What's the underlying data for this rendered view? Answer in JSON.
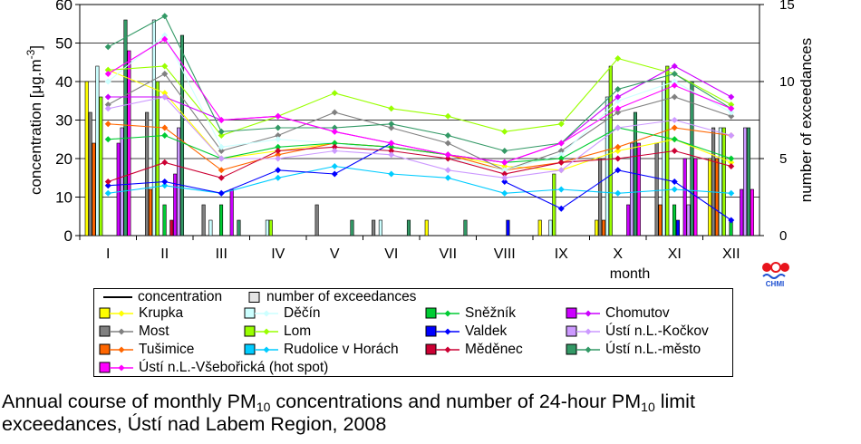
{
  "chart_data": {
    "type": "bar+line",
    "categories": [
      "I",
      "II",
      "III",
      "IV",
      "V",
      "VI",
      "VII",
      "VIII",
      "IX",
      "X",
      "XI",
      "XII"
    ],
    "xlabel": "month",
    "ylabel_left": "concentration [μg.m-3]",
    "ylabel_right": "number of exceedances",
    "ylim_left": [
      0,
      60
    ],
    "yticks_left": [
      0,
      10,
      20,
      30,
      40,
      50,
      60
    ],
    "ylim_right": [
      0,
      15
    ],
    "yticks_right": [
      0,
      5,
      10,
      15
    ],
    "grid": true,
    "series": [
      {
        "name": "Krupka",
        "color": "#ffff00",
        "exceedances": [
          10,
          0,
          0,
          0,
          0,
          0,
          1,
          0,
          1,
          1,
          0,
          5
        ],
        "concentration": [
          43,
          37,
          20,
          22,
          24,
          23,
          21,
          18,
          17,
          22,
          25,
          19
        ]
      },
      {
        "name": "Most",
        "color": "#808080",
        "exceedances": [
          8,
          8,
          2,
          0,
          2,
          1,
          0,
          0,
          0,
          5,
          6,
          7
        ],
        "concentration": [
          34,
          42,
          22,
          26,
          32,
          28,
          24,
          17,
          22,
          32,
          36,
          31
        ]
      },
      {
        "name": "Tušimice",
        "color": "#ff6600",
        "exceedances": [
          6,
          3,
          0,
          0,
          0,
          0,
          0,
          0,
          0,
          1,
          2,
          5
        ],
        "concentration": [
          29,
          28,
          17,
          21,
          24,
          23,
          21,
          17,
          19,
          23,
          28,
          26
        ]
      },
      {
        "name": "Děčín",
        "color": "#ccffff",
        "exceedances": [
          11,
          14,
          1,
          1,
          0,
          1,
          0,
          0,
          1,
          9,
          10,
          7
        ],
        "concentration": [
          40,
          52,
          23,
          25,
          24,
          22,
          20,
          17,
          21,
          35,
          40,
          32
        ]
      },
      {
        "name": "Lom",
        "color": "#99ff00",
        "exceedances": [
          9,
          10,
          0,
          1,
          0,
          0,
          0,
          0,
          4,
          11,
          11,
          7
        ],
        "concentration": [
          43,
          44,
          26,
          31,
          37,
          33,
          31,
          27,
          29,
          46,
          42,
          34
        ]
      },
      {
        "name": "Rudolice v Horách",
        "color": "#00ccff",
        "exceedances": [
          0,
          0,
          0,
          0,
          0,
          0,
          0,
          0,
          0,
          0,
          0,
          0
        ],
        "concentration": [
          11,
          13,
          11,
          15,
          18,
          16,
          15,
          11,
          12,
          11,
          12,
          11
        ]
      },
      {
        "name": "Sněžník",
        "color": "#00cc33",
        "exceedances": [
          0,
          2,
          2,
          0,
          0,
          0,
          0,
          0,
          0,
          0,
          2,
          1
        ],
        "concentration": [
          25,
          26,
          20,
          23,
          24,
          23,
          21,
          19,
          20,
          28,
          25,
          20
        ]
      },
      {
        "name": "Valdek",
        "color": "#0000ff",
        "exceedances": [
          0,
          0,
          0,
          0,
          0,
          0,
          0,
          1,
          0,
          0,
          1,
          0
        ],
        "concentration": [
          13,
          14,
          11,
          17,
          16,
          24,
          null,
          14,
          7,
          17,
          14,
          4
        ]
      },
      {
        "name": "Měděnec",
        "color": "#cc0033",
        "exceedances": [
          0,
          1,
          0,
          0,
          0,
          0,
          0,
          0,
          0,
          0,
          0,
          0
        ],
        "concentration": [
          14,
          19,
          15,
          22,
          23,
          22,
          20,
          16,
          19,
          20,
          22,
          18
        ]
      },
      {
        "name": "Chomutov",
        "color": "#cc00ff",
        "exceedances": [
          6,
          4,
          3,
          0,
          0,
          0,
          0,
          0,
          0,
          2,
          5,
          3
        ],
        "concentration": [
          36,
          36,
          30,
          31,
          27,
          24,
          21,
          19,
          24,
          36,
          44,
          36
        ]
      },
      {
        "name": "Ústí n.L.-Kočkov",
        "color": "#cc99ff",
        "exceedances": [
          7,
          7,
          0,
          0,
          0,
          0,
          0,
          0,
          0,
          6,
          2,
          7
        ],
        "concentration": [
          33,
          36,
          20,
          20,
          22,
          21,
          17,
          15,
          17,
          28,
          30,
          26
        ]
      },
      {
        "name": "Ústí n.L.-město",
        "color": "#339966",
        "exceedances": [
          14,
          13,
          1,
          0,
          1,
          1,
          1,
          0,
          0,
          8,
          10,
          7
        ],
        "concentration": [
          49,
          57,
          27,
          28,
          28,
          29,
          26,
          22,
          24,
          38,
          42,
          33
        ]
      },
      {
        "name": "Ústí n.L.-Všebořická (hot spot)",
        "color": "#ff00ff",
        "exceedances": [
          12,
          0,
          0,
          0,
          0,
          0,
          0,
          0,
          0,
          6,
          5,
          3
        ],
        "concentration": [
          42,
          51,
          30,
          31,
          27,
          24,
          21,
          19,
          24,
          33,
          39,
          33
        ]
      }
    ]
  },
  "legend": {
    "concentration_label": "concentration",
    "exceedances_label": "number of exceedances"
  },
  "logo": {
    "text": "CHMI"
  },
  "caption": {
    "line1_a": "Annual course of monthly PM",
    "line1_sub1": "10",
    "line1_b": " concentrations and number of 24-hour PM",
    "line1_sub2": "10",
    "line1_c": " limit",
    "line2": "exceedances, Ústí nad Labem Region, 2008"
  }
}
